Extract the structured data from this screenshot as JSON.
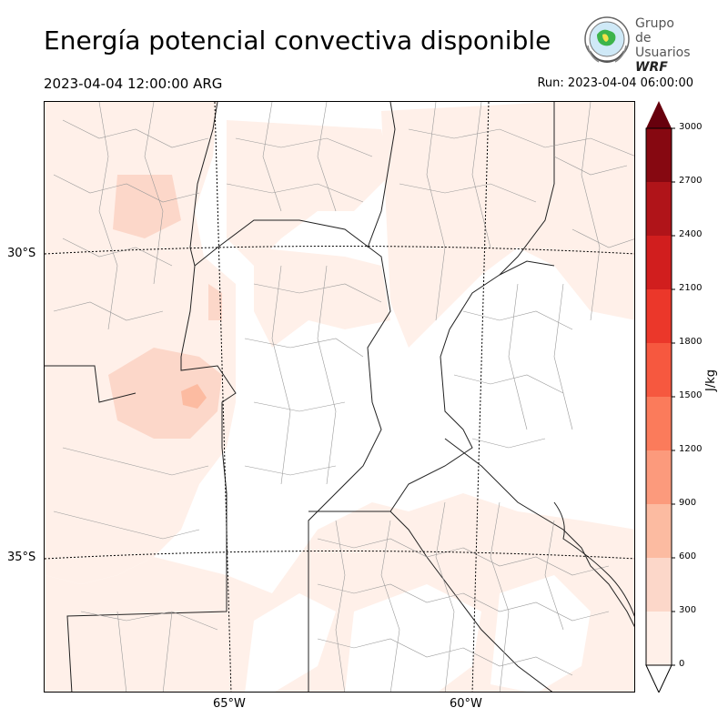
{
  "title": "Energía potencial convectiva disponible",
  "valid_time": "2023-04-04 12:00:00 ARG",
  "run_time": "Run: 2023-04-04 06:00:00",
  "logo": {
    "line1": "Grupo de",
    "line2": "Usuarios",
    "line3": "WRF",
    "icon": "wrf-globe-logo"
  },
  "map": {
    "lat_labels": [
      "30°S",
      "35°S"
    ],
    "lon_labels": [
      "65°W",
      "60°W"
    ]
  },
  "colorbar": {
    "unit": "J/kg",
    "ticks": [
      "0",
      "300",
      "600",
      "900",
      "1200",
      "1500",
      "1800",
      "2100",
      "2400",
      "2700",
      "3000"
    ],
    "colors": [
      "#fff0e9",
      "#fcd7c9",
      "#fcbba1",
      "#fc9a7c",
      "#fb7b5b",
      "#f6583f",
      "#eb372a",
      "#d11e1e",
      "#b01419",
      "#860811"
    ],
    "over_color": "#67000d"
  }
}
